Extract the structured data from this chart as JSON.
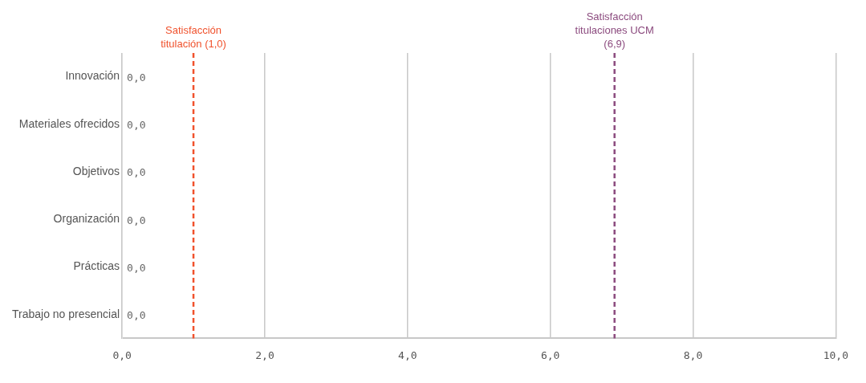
{
  "chart_data": {
    "type": "bar",
    "orientation": "horizontal",
    "categories": [
      "Innovación",
      "Materiales ofrecidos",
      "Objetivos",
      "Organización",
      "Prácticas",
      "Trabajo no presencial"
    ],
    "values": [
      0,
      0,
      0,
      0,
      0,
      0
    ],
    "value_labels": [
      "0,0",
      "0,0",
      "0,0",
      "0,0",
      "0,0",
      "0,0"
    ],
    "xlim": [
      0,
      10
    ],
    "xticks": [
      {
        "value": 0,
        "label": "0,0"
      },
      {
        "value": 2,
        "label": "2,0"
      },
      {
        "value": 4,
        "label": "4,0"
      },
      {
        "value": 6,
        "label": "6,0"
      },
      {
        "value": 8,
        "label": "8,0"
      },
      {
        "value": 10,
        "label": "10,0"
      }
    ],
    "grid": "x",
    "legend": false,
    "ref_lines": [
      {
        "axis": "x",
        "value": 1.0,
        "label": "Satisfacción titulación (1,0)",
        "color": "#f0522d",
        "line_style": "dashed"
      },
      {
        "axis": "x",
        "value": 6.9,
        "label": "Satisfacción titulaciones UCM (6,9)",
        "color": "#8b4a7e",
        "line_style": "dashed"
      }
    ]
  }
}
